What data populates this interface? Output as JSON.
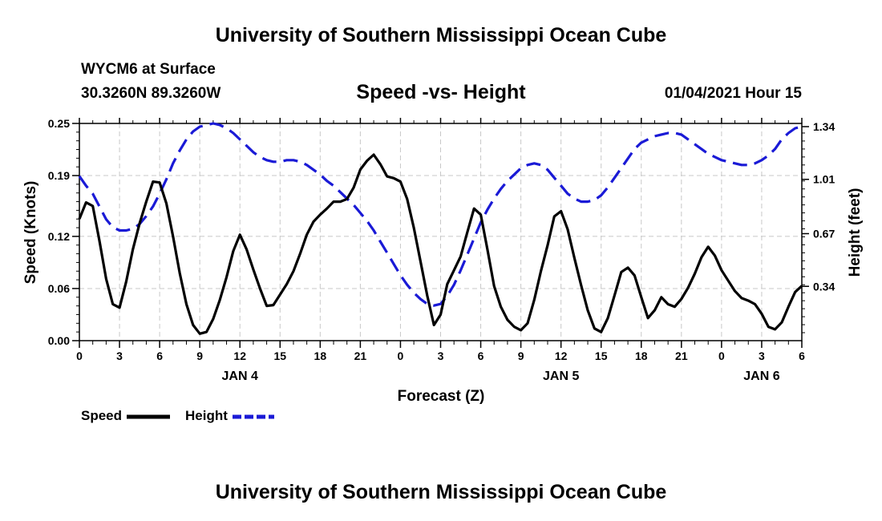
{
  "header": {
    "title_top": "University of Southern Mississippi Ocean Cube",
    "station": "WYCM6 at Surface",
    "coords": "30.3260N 89.3260W",
    "datetime": "01/04/2021 Hour 15"
  },
  "footer": {
    "title_bottom": "University of Southern Mississippi Ocean Cube"
  },
  "legend": {
    "speed_label": "Speed",
    "height_label": "Height"
  },
  "colors": {
    "speed": "#000000",
    "height": "#1a1ad6",
    "grid": "#c8c8c8"
  },
  "chart_data": {
    "type": "line",
    "title": "Speed -vs- Height",
    "xlabel": "Forecast (Z)",
    "ylabel": "Speed (Knots)",
    "y2label": "Height (feet)",
    "xlim": [
      0,
      54
    ],
    "x_tick_values": [
      0,
      3,
      6,
      9,
      12,
      15,
      18,
      21,
      24,
      27,
      30,
      33,
      36,
      39,
      42,
      45,
      48,
      51,
      54
    ],
    "x_tick_labels": [
      "0",
      "3",
      "6",
      "9",
      "12",
      "15",
      "18",
      "21",
      "0",
      "3",
      "6",
      "9",
      "12",
      "15",
      "18",
      "21",
      "0",
      "3",
      "6"
    ],
    "day_labels": [
      {
        "x": 12,
        "label": "JAN 4"
      },
      {
        "x": 36,
        "label": "JAN 5"
      },
      {
        "x": 51,
        "label": "JAN 6"
      }
    ],
    "ylim": [
      0,
      0.25
    ],
    "y_ticks": [
      0.0,
      0.06,
      0.12,
      0.19,
      0.25
    ],
    "y_tick_labels": [
      "0.00",
      "0.06",
      "0.12",
      "0.19",
      "0.25"
    ],
    "y2lim": [
      0.0,
      1.36
    ],
    "y2_ticks": [
      0.34,
      0.67,
      1.01,
      1.34
    ],
    "y2_tick_labels": [
      "0.34",
      "0.67",
      "1.01",
      "1.34"
    ],
    "grid": true,
    "series": [
      {
        "name": "Speed",
        "axis": "left",
        "style": "solid",
        "x": [
          0,
          0.5,
          1,
          1.5,
          2,
          2.5,
          3,
          3.5,
          4,
          4.5,
          5,
          5.5,
          6,
          6.5,
          7,
          7.5,
          8,
          8.5,
          9,
          9.5,
          10,
          10.5,
          11,
          11.5,
          12,
          12.5,
          13,
          13.5,
          14,
          14.5,
          15,
          15.5,
          16,
          16.5,
          17,
          17.5,
          18,
          18.5,
          19,
          19.5,
          20,
          20.5,
          21,
          21.5,
          22,
          22.5,
          23,
          23.5,
          24,
          24.5,
          25,
          25.5,
          26,
          26.5,
          27,
          27.5,
          28,
          28.5,
          29,
          29.5,
          30,
          30.5,
          31,
          31.5,
          32,
          32.5,
          33,
          33.5,
          34,
          34.5,
          35,
          35.5,
          36,
          36.5,
          37,
          37.5,
          38,
          38.5,
          39,
          39.5,
          40,
          40.5,
          41,
          41.5,
          42,
          42.5,
          43,
          43.5,
          44,
          44.5,
          45,
          45.5,
          46,
          46.5,
          47,
          47.5,
          48,
          48.5,
          49,
          49.5,
          50,
          50.5,
          51,
          51.5,
          52,
          52.5,
          53,
          53.5,
          54
        ],
        "values": [
          0.14,
          0.159,
          0.155,
          0.115,
          0.071,
          0.042,
          0.038,
          0.068,
          0.105,
          0.135,
          0.16,
          0.183,
          0.182,
          0.158,
          0.12,
          0.078,
          0.042,
          0.018,
          0.008,
          0.01,
          0.025,
          0.047,
          0.073,
          0.103,
          0.122,
          0.105,
          0.082,
          0.06,
          0.04,
          0.041,
          0.053,
          0.065,
          0.08,
          0.1,
          0.122,
          0.137,
          0.145,
          0.152,
          0.16,
          0.16,
          0.163,
          0.176,
          0.197,
          0.207,
          0.214,
          0.203,
          0.189,
          0.187,
          0.183,
          0.163,
          0.13,
          0.091,
          0.052,
          0.018,
          0.03,
          0.065,
          0.081,
          0.097,
          0.125,
          0.152,
          0.145,
          0.105,
          0.063,
          0.039,
          0.024,
          0.016,
          0.012,
          0.02,
          0.047,
          0.08,
          0.11,
          0.143,
          0.149,
          0.128,
          0.095,
          0.064,
          0.035,
          0.014,
          0.01,
          0.026,
          0.052,
          0.079,
          0.084,
          0.075,
          0.05,
          0.026,
          0.035,
          0.05,
          0.042,
          0.039,
          0.048,
          0.061,
          0.077,
          0.096,
          0.108,
          0.098,
          0.081,
          0.069,
          0.057,
          0.049,
          0.046,
          0.042,
          0.031,
          0.016,
          0.013,
          0.021,
          0.039,
          0.056,
          0.063
        ]
      },
      {
        "name": "Height",
        "axis": "right",
        "style": "dashed",
        "x": [
          0,
          0.5,
          1,
          1.5,
          2,
          2.5,
          3,
          3.5,
          4,
          4.5,
          5,
          5.5,
          6,
          6.5,
          7,
          7.5,
          8,
          8.5,
          9,
          9.5,
          10,
          10.5,
          11,
          11.5,
          12,
          12.5,
          13,
          13.5,
          14,
          14.5,
          15,
          15.5,
          16,
          16.5,
          17,
          17.5,
          18,
          18.5,
          19,
          19.5,
          20,
          20.5,
          21,
          21.5,
          22,
          22.5,
          23,
          23.5,
          24,
          24.5,
          25,
          25.5,
          26,
          26.5,
          27,
          27.5,
          28,
          28.5,
          29,
          29.5,
          30,
          30.5,
          31,
          31.5,
          32,
          32.5,
          33,
          33.5,
          34,
          34.5,
          35,
          35.5,
          36,
          36.5,
          37,
          37.5,
          38,
          38.5,
          39,
          39.5,
          40,
          40.5,
          41,
          41.5,
          42,
          42.5,
          43,
          43.5,
          44,
          44.5,
          45,
          45.5,
          46,
          46.5,
          47,
          47.5,
          48,
          48.5,
          49,
          49.5,
          50,
          50.5,
          51,
          51.5,
          52,
          52.5,
          53,
          53.5,
          54
        ],
        "values": [
          1.03,
          0.97,
          0.92,
          0.84,
          0.76,
          0.71,
          0.69,
          0.69,
          0.7,
          0.73,
          0.78,
          0.84,
          0.92,
          1.01,
          1.11,
          1.19,
          1.26,
          1.31,
          1.34,
          1.35,
          1.36,
          1.35,
          1.33,
          1.3,
          1.26,
          1.22,
          1.18,
          1.15,
          1.13,
          1.12,
          1.12,
          1.13,
          1.13,
          1.12,
          1.1,
          1.07,
          1.04,
          1.0,
          0.97,
          0.93,
          0.89,
          0.85,
          0.8,
          0.75,
          0.69,
          0.62,
          0.55,
          0.48,
          0.41,
          0.35,
          0.3,
          0.26,
          0.23,
          0.22,
          0.23,
          0.28,
          0.35,
          0.44,
          0.54,
          0.64,
          0.74,
          0.82,
          0.89,
          0.95,
          1.0,
          1.04,
          1.08,
          1.1,
          1.11,
          1.1,
          1.07,
          1.02,
          0.97,
          0.92,
          0.89,
          0.87,
          0.87,
          0.88,
          0.91,
          0.96,
          1.02,
          1.08,
          1.14,
          1.2,
          1.24,
          1.26,
          1.28,
          1.29,
          1.3,
          1.3,
          1.29,
          1.26,
          1.23,
          1.2,
          1.17,
          1.15,
          1.13,
          1.12,
          1.11,
          1.1,
          1.1,
          1.11,
          1.13,
          1.16,
          1.2,
          1.26,
          1.3,
          1.33,
          1.34
        ]
      }
    ]
  }
}
